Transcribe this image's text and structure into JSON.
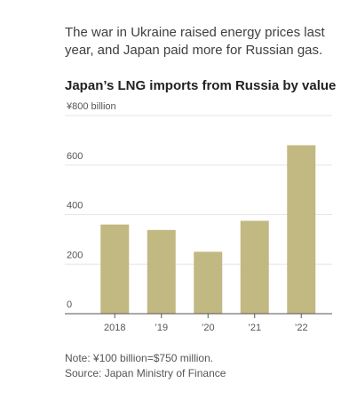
{
  "subtitle": "The war in Ukraine raised energy prices last year, and Japan paid more for Russian gas.",
  "footer": {
    "note": "Note: ¥100 billion=$750 million.",
    "source": "Source: Japan Ministry of Finance"
  },
  "colors": {
    "bar": "#c2b882",
    "grid": "#e6e6e6",
    "axis": "#555555"
  },
  "chart_data": {
    "type": "bar",
    "title": "Japan’s LNG imports from Russia by value",
    "categories": [
      "2018",
      "’19",
      "’20",
      "’21",
      "’22"
    ],
    "values": [
      360,
      338,
      250,
      375,
      680
    ],
    "ylim": [
      0,
      800
    ],
    "yticks": [
      0,
      200,
      400,
      600,
      800
    ],
    "ytick_labels": [
      "0",
      "200",
      "400",
      "600",
      "¥800 billion"
    ],
    "xlabel": "",
    "ylabel": "",
    "grid": true
  }
}
